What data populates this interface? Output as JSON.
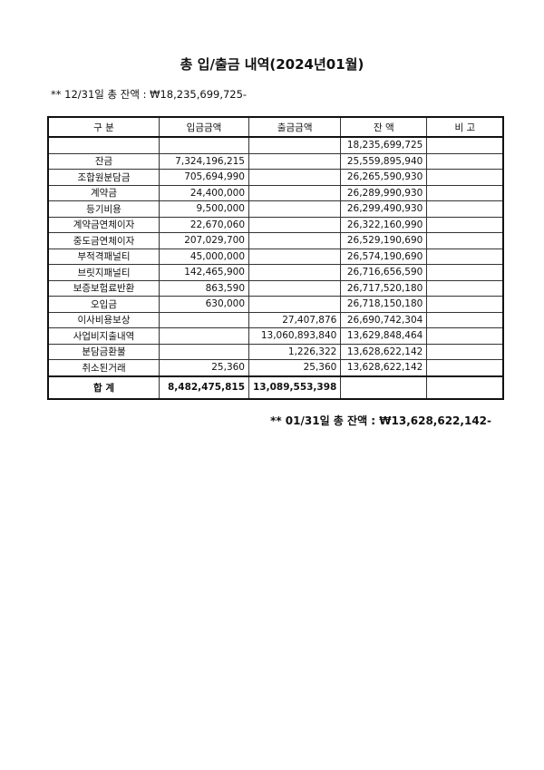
{
  "title": "총 입/출금 내역(2024년01월)",
  "opening_balance": "** 12/31일 총 잔액 :  ₩18,235,699,725-",
  "headers": [
    "구     분",
    "입금금액",
    "출금금액",
    "잔   액",
    "비   고"
  ],
  "rows": [
    [
      "",
      "",
      "",
      "18,235,699,725",
      ""
    ],
    [
      "잔금",
      "7,324,196,215",
      "",
      "25,559,895,940",
      ""
    ],
    [
      "조합원분담금",
      "705,694,990",
      "",
      "26,265,590,930",
      ""
    ],
    [
      "계약금",
      "24,400,000",
      "",
      "26,289,990,930",
      ""
    ],
    [
      "등기비용",
      "9,500,000",
      "",
      "26,299,490,930",
      ""
    ],
    [
      "계약금연체이자",
      "22,670,060",
      "",
      "26,322,160,990",
      ""
    ],
    [
      "중도금연체이자",
      "207,029,700",
      "",
      "26,529,190,690",
      ""
    ],
    [
      "부적격패널티",
      "45,000,000",
      "",
      "26,574,190,690",
      ""
    ],
    [
      "브릿지패널티",
      "142,465,900",
      "",
      "26,716,656,590",
      ""
    ],
    [
      "보증보험료반환",
      "863,590",
      "",
      "26,717,520,180",
      ""
    ],
    [
      "오입금",
      "630,000",
      "",
      "26,718,150,180",
      ""
    ],
    [
      "이사비용보상",
      "",
      "27,407,876",
      "26,690,742,304",
      ""
    ],
    [
      "사업비지출내역",
      "",
      "13,060,893,840",
      "13,629,848,464",
      ""
    ],
    [
      "분담금환불",
      "",
      "1,226,322",
      "13,628,622,142",
      ""
    ],
    [
      "취소된거래",
      "25,360",
      "25,360",
      "13,628,622,142",
      ""
    ]
  ],
  "total": [
    "합    계",
    "8,482,475,815",
    "13,089,553,398",
    "",
    ""
  ],
  "closing_balance": "** 01/31일 총 잔액 :  ₩13,628,622,142-"
}
